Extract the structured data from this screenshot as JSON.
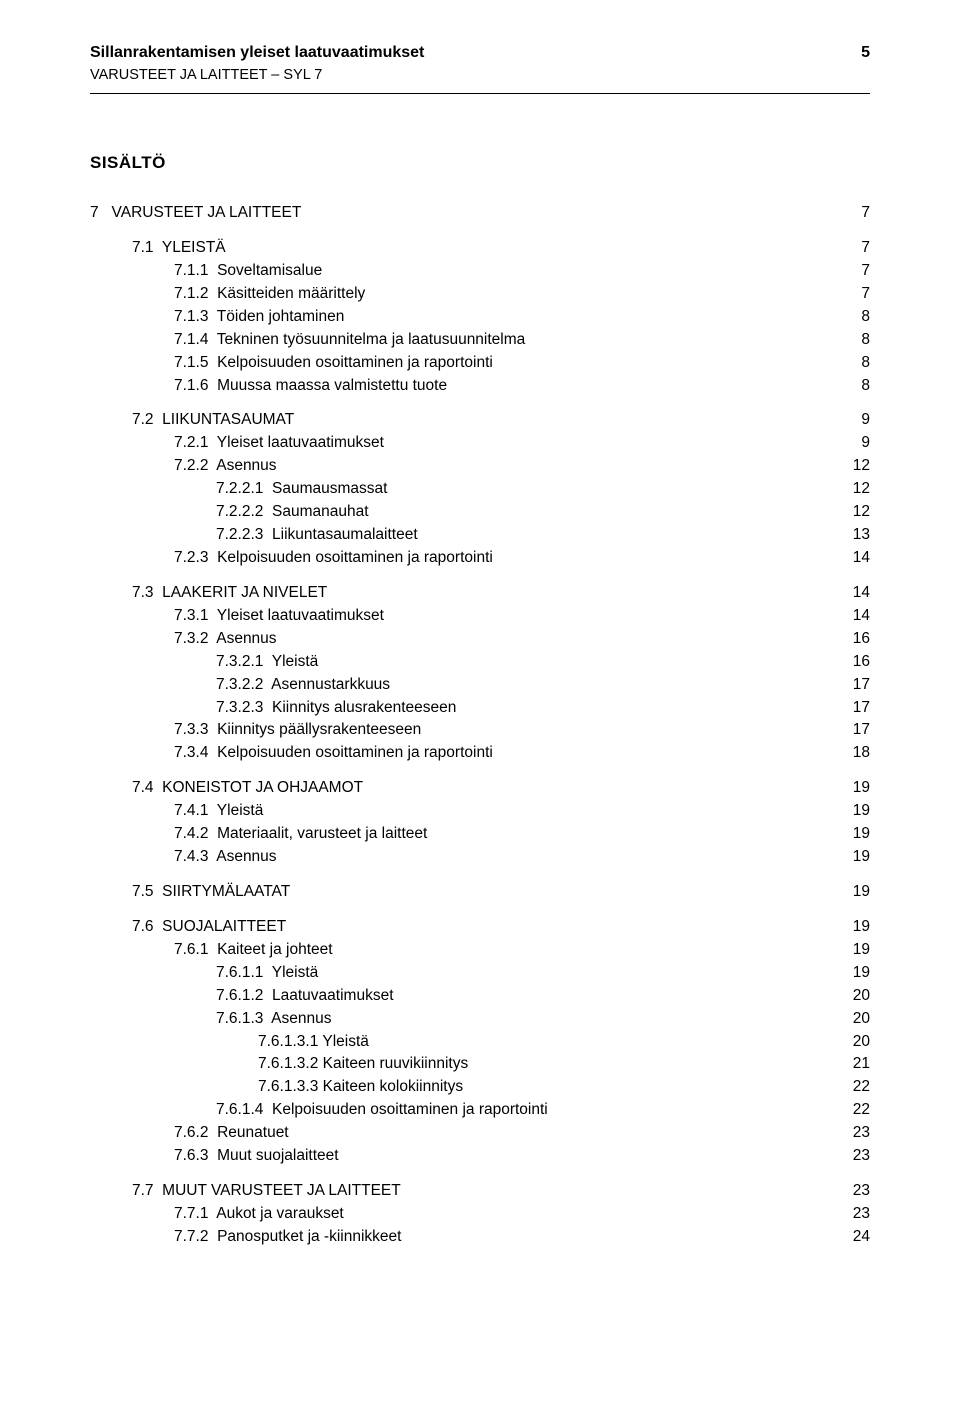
{
  "header": {
    "title": "Sillanrakentamisen yleiset laatuvaatimukset",
    "subtitle": "VARUSTEET JA LAITTEET – SYL 7",
    "page_number": "5"
  },
  "contents_heading": "SISÄLTÖ",
  "toc": [
    {
      "level": 0,
      "label": "7   VARUSTEET JA LAITTEET",
      "page": "7",
      "gap": "none"
    },
    {
      "level": 1,
      "label": "7.1  YLEISTÄ",
      "page": "7",
      "gap": "group"
    },
    {
      "level": 2,
      "label": "7.1.1  Soveltamisalue",
      "page": "7",
      "gap": "none"
    },
    {
      "level": 2,
      "label": "7.1.2  Käsitteiden määrittely",
      "page": "7",
      "gap": "none"
    },
    {
      "level": 2,
      "label": "7.1.3  Töiden johtaminen",
      "page": "8",
      "gap": "none"
    },
    {
      "level": 2,
      "label": "7.1.4  Tekninen työsuunnitelma ja laatusuunnitelma",
      "page": "8",
      "gap": "none"
    },
    {
      "level": 2,
      "label": "7.1.5  Kelpoisuuden osoittaminen ja raportointi",
      "page": "8",
      "gap": "none"
    },
    {
      "level": 2,
      "label": "7.1.6  Muussa maassa valmistettu tuote",
      "page": "8",
      "gap": "none"
    },
    {
      "level": 1,
      "label": "7.2  LIIKUNTASAUMAT",
      "page": "9",
      "gap": "group"
    },
    {
      "level": 2,
      "label": "7.2.1  Yleiset laatuvaatimukset",
      "page": "9",
      "gap": "none"
    },
    {
      "level": 2,
      "label": "7.2.2  Asennus",
      "page": "12",
      "gap": "none"
    },
    {
      "level": 3,
      "label": "7.2.2.1  Saumausmassat",
      "page": "12",
      "gap": "none"
    },
    {
      "level": 3,
      "label": "7.2.2.2  Saumanauhat",
      "page": "12",
      "gap": "none"
    },
    {
      "level": 3,
      "label": "7.2.2.3  Liikuntasaumalaitteet",
      "page": "13",
      "gap": "none"
    },
    {
      "level": 2,
      "label": "7.2.3  Kelpoisuuden osoittaminen ja raportointi",
      "page": "14",
      "gap": "none"
    },
    {
      "level": 1,
      "label": "7.3  LAAKERIT JA NIVELET",
      "page": "14",
      "gap": "group"
    },
    {
      "level": 2,
      "label": "7.3.1  Yleiset laatuvaatimukset",
      "page": "14",
      "gap": "none"
    },
    {
      "level": 2,
      "label": "7.3.2  Asennus",
      "page": "16",
      "gap": "none"
    },
    {
      "level": 3,
      "label": "7.3.2.1  Yleistä",
      "page": "16",
      "gap": "none"
    },
    {
      "level": 3,
      "label": "7.3.2.2  Asennustarkkuus",
      "page": "17",
      "gap": "none"
    },
    {
      "level": 3,
      "label": "7.3.2.3  Kiinnitys alusrakenteeseen",
      "page": "17",
      "gap": "none"
    },
    {
      "level": 2,
      "label": "7.3.3  Kiinnitys päällysrakenteeseen",
      "page": "17",
      "gap": "none"
    },
    {
      "level": 2,
      "label": "7.3.4  Kelpoisuuden osoittaminen ja raportointi",
      "page": "18",
      "gap": "none"
    },
    {
      "level": 1,
      "label": "7.4  KONEISTOT JA OHJAAMOT",
      "page": "19",
      "gap": "group"
    },
    {
      "level": 2,
      "label": "7.4.1  Yleistä",
      "page": "19",
      "gap": "none"
    },
    {
      "level": 2,
      "label": "7.4.2  Materiaalit, varusteet ja laitteet",
      "page": "19",
      "gap": "none"
    },
    {
      "level": 2,
      "label": "7.4.3  Asennus",
      "page": "19",
      "gap": "none"
    },
    {
      "level": 1,
      "label": "7.5  SIIRTYMÄLAATAT",
      "page": "19",
      "gap": "group"
    },
    {
      "level": 1,
      "label": "7.6  SUOJALAITTEET",
      "page": "19",
      "gap": "group"
    },
    {
      "level": 2,
      "label": "7.6.1  Kaiteet ja johteet",
      "page": "19",
      "gap": "none"
    },
    {
      "level": 3,
      "label": "7.6.1.1  Yleistä",
      "page": "19",
      "gap": "none"
    },
    {
      "level": 3,
      "label": "7.6.1.2  Laatuvaatimukset",
      "page": "20",
      "gap": "none"
    },
    {
      "level": 3,
      "label": "7.6.1.3  Asennus",
      "page": "20",
      "gap": "none"
    },
    {
      "level": 4,
      "label": "7.6.1.3.1 Yleistä",
      "page": "20",
      "gap": "none"
    },
    {
      "level": 4,
      "label": "7.6.1.3.2 Kaiteen ruuvikiinnitys",
      "page": "21",
      "gap": "none"
    },
    {
      "level": 4,
      "label": "7.6.1.3.3 Kaiteen kolokiinnitys",
      "page": "22",
      "gap": "none"
    },
    {
      "level": 3,
      "label": "7.6.1.4  Kelpoisuuden osoittaminen ja raportointi",
      "page": "22",
      "gap": "none"
    },
    {
      "level": 2,
      "label": "7.6.2  Reunatuet",
      "page": "23",
      "gap": "none"
    },
    {
      "level": 2,
      "label": "7.6.3  Muut suojalaitteet",
      "page": "23",
      "gap": "none"
    },
    {
      "level": 1,
      "label": "7.7  MUUT VARUSTEET JA LAITTEET",
      "page": "23",
      "gap": "group"
    },
    {
      "level": 2,
      "label": "7.7.1  Aukot ja varaukset",
      "page": "23",
      "gap": "none"
    },
    {
      "level": 2,
      "label": "7.7.2  Panosputket ja -kiinnikkeet",
      "page": "24",
      "gap": "none"
    }
  ]
}
